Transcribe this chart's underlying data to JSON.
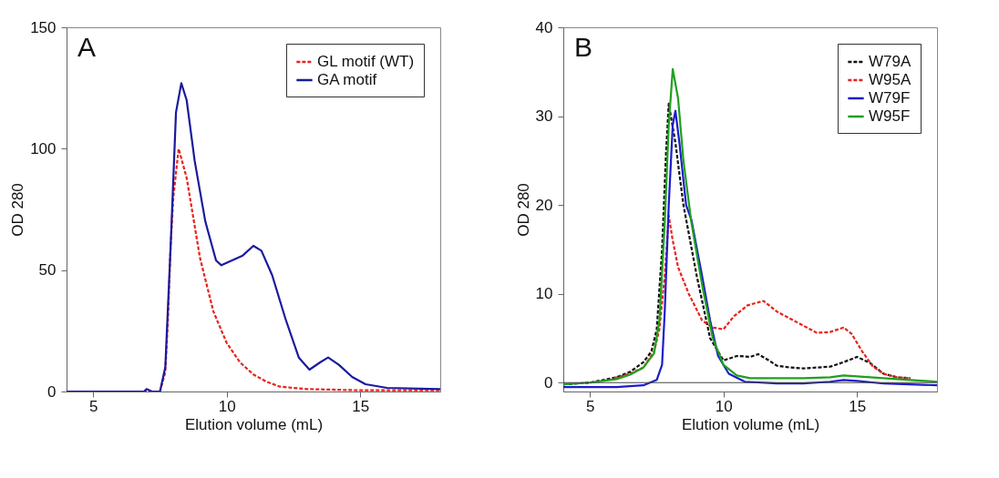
{
  "chart_data": [
    {
      "type": "line",
      "annotations": [
        "A"
      ],
      "xlabel": "Elution volume (mL)",
      "ylabel": "OD 280",
      "xlim": [
        4,
        18
      ],
      "xticks": [
        5,
        10,
        15
      ],
      "ylim": [
        0,
        150
      ],
      "yticks": [
        0,
        50,
        100,
        150
      ],
      "grid": false,
      "legend": "top right",
      "series": [
        {
          "name": "GL motif (WT)",
          "color": "#e8231c",
          "line_style": "dashed",
          "x": [
            4,
            7,
            7.5,
            7.7,
            7.8,
            7.9,
            8.0,
            8.2,
            8.5,
            9.0,
            9.5,
            10,
            10.5,
            11,
            11.5,
            12,
            13,
            15,
            18
          ],
          "values": [
            0,
            0,
            0,
            8,
            30,
            60,
            80,
            100,
            88,
            55,
            33,
            20,
            12,
            7,
            4,
            2,
            1,
            0.5,
            0.5
          ]
        },
        {
          "name": "GA motif",
          "color": "#1a1a9e",
          "line_style": "solid",
          "x": [
            4,
            6.9,
            7.0,
            7.2,
            7.5,
            7.7,
            7.9,
            8.1,
            8.3,
            8.5,
            8.8,
            9.2,
            9.6,
            9.8,
            10.2,
            10.6,
            11.0,
            11.3,
            11.7,
            12.2,
            12.7,
            13.1,
            13.5,
            13.8,
            14.2,
            14.7,
            15.2,
            16,
            18
          ],
          "values": [
            0,
            0,
            1,
            0,
            0,
            10,
            60,
            115,
            127,
            120,
            95,
            70,
            54,
            52,
            54,
            56,
            60,
            58,
            48,
            30,
            14,
            9,
            12,
            14,
            11,
            6,
            3,
            1.5,
            1
          ]
        }
      ]
    },
    {
      "type": "line",
      "annotations": [
        "B"
      ],
      "xlabel": "Elution volume (mL)",
      "ylabel": "OD 280",
      "xlim": [
        4,
        18
      ],
      "xticks": [
        5,
        10,
        15
      ],
      "ylim": [
        -1,
        40
      ],
      "yticks": [
        0,
        10,
        20,
        30,
        40
      ],
      "grid": false,
      "legend": "top right",
      "ref_lines": [
        {
          "axis": "y",
          "value": 0,
          "color": "#444444"
        }
      ],
      "series": [
        {
          "name": "W79A",
          "color": "#111111",
          "line_style": "dashed",
          "x": [
            4,
            5,
            6,
            6.5,
            7,
            7.3,
            7.5,
            7.7,
            7.85,
            7.95,
            8.2,
            8.5,
            9,
            9.5,
            10,
            10.5,
            11,
            11.3,
            11.7,
            12,
            12.5,
            13,
            14,
            14.5,
            15,
            15.5,
            16,
            16.5,
            17
          ],
          "values": [
            -0.2,
            0,
            0.6,
            1.2,
            2.3,
            3.5,
            6,
            15,
            26,
            31.4,
            27,
            20,
            12,
            5,
            2.5,
            3.0,
            2.9,
            3.2,
            2.5,
            1.9,
            1.7,
            1.6,
            1.8,
            2.3,
            2.9,
            2.2,
            1.0,
            0.6,
            0.5
          ]
        },
        {
          "name": "W95A",
          "color": "#e8231c",
          "line_style": "dashed",
          "x": [
            5.9,
            6.5,
            7,
            7.4,
            7.6,
            7.8,
            7.95,
            8.1,
            8.3,
            8.7,
            9.2,
            9.6,
            10,
            10.4,
            10.9,
            11.5,
            12,
            12.5,
            13,
            13.5,
            14,
            14.5,
            14.8,
            15.2,
            15.6,
            16,
            16.5,
            17
          ],
          "values": [
            0.5,
            1.0,
            1.7,
            3.5,
            6,
            12,
            18.8,
            16,
            13,
            10,
            7,
            6.2,
            6.0,
            7.5,
            8.7,
            9.2,
            8,
            7.2,
            6.4,
            5.6,
            5.7,
            6.2,
            5.5,
            3.5,
            1.8,
            1.0,
            0.6,
            0.5
          ]
        },
        {
          "name": "W79F",
          "color": "#1c1ccc",
          "line_style": "solid",
          "x": [
            4,
            6,
            7,
            7.5,
            7.7,
            7.8,
            7.95,
            8.1,
            8.2,
            8.35,
            8.6,
            8.8,
            9.2,
            9.5,
            9.8,
            10.2,
            10.8,
            12,
            13,
            14,
            14.5,
            15,
            16,
            18
          ],
          "values": [
            -0.5,
            -0.5,
            -0.3,
            0.3,
            2,
            8,
            20,
            29,
            30.6,
            27,
            20,
            18.3,
            12,
            7,
            3,
            1.0,
            0.1,
            -0.1,
            -0.1,
            0.1,
            0.3,
            0.2,
            -0.1,
            -0.3
          ]
        },
        {
          "name": "W95F",
          "color": "#1fa01f",
          "line_style": "solid",
          "x": [
            4,
            5,
            6,
            6.5,
            7,
            7.4,
            7.6,
            7.8,
            7.95,
            8.1,
            8.3,
            8.5,
            8.8,
            9.2,
            9.6,
            10,
            10.5,
            11,
            13,
            14,
            14.5,
            15,
            16,
            17,
            18
          ],
          "values": [
            -0.2,
            0,
            0.4,
            0.9,
            1.7,
            3.3,
            7,
            18,
            29,
            35.3,
            32,
            25,
            18,
            11,
            5,
            2,
            0.8,
            0.5,
            0.5,
            0.6,
            0.8,
            0.7,
            0.5,
            0.3,
            0.1
          ]
        }
      ]
    }
  ]
}
